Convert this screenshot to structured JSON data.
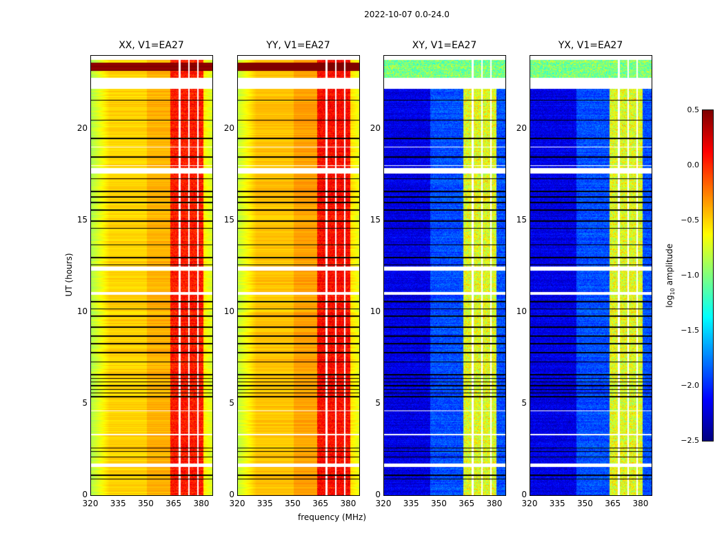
{
  "suptitle": "2022-10-07 0.0-24.0",
  "chart_data": {
    "type": "heatmap",
    "xlabel": "frequency (MHz)",
    "ylabel": "UT (hours)",
    "xlim": [
      320,
      386
    ],
    "ylim": [
      0,
      24
    ],
    "xticks": [
      "320",
      "335",
      "350",
      "365",
      "380"
    ],
    "yticks": [
      "0",
      "5",
      "10",
      "15",
      "20"
    ],
    "panels": [
      {
        "title": "XX, V1=EA27",
        "kind": "parallel",
        "base_log10_amp": -0.7,
        "band_log10_amp": 0.05
      },
      {
        "title": "YY, V1=EA27",
        "kind": "parallel",
        "base_log10_amp": -0.65,
        "band_log10_amp": 0.1
      },
      {
        "title": "XY, V1=EA27",
        "kind": "cross",
        "base_log10_amp": -2.2,
        "band_log10_amp": -0.7
      },
      {
        "title": "YX, V1=EA27",
        "kind": "cross",
        "base_log10_amp": -2.2,
        "band_log10_amp": -0.7
      }
    ],
    "rfi_band_MHz": [
      363,
      381
    ],
    "band_gaps_MHz": [
      368,
      373,
      378
    ],
    "flagged_black_hours": [
      0.9,
      1.1,
      2.1,
      2.4,
      2.6,
      5.4,
      5.6,
      5.8,
      6.0,
      6.2,
      6.4,
      6.6,
      7.3,
      7.8,
      8.3,
      8.7,
      9.2,
      9.8,
      10.2,
      10.6,
      12.6,
      13.0,
      13.7,
      14.6,
      15.0,
      15.6,
      16.0,
      16.3,
      16.6,
      17.3,
      18.5,
      19.5,
      20.5,
      21.6
    ],
    "flagged_white_hours": [
      [
        1.55,
        1.75
      ],
      [
        3.3,
        3.35
      ],
      [
        4.6,
        4.65
      ],
      [
        10.95,
        11.1
      ],
      [
        12.3,
        12.5
      ],
      [
        17.6,
        17.9
      ],
      [
        18.0,
        18.05
      ],
      [
        19.0,
        19.05
      ],
      [
        22.2,
        22.8
      ],
      [
        23.8,
        24.0
      ]
    ],
    "colorbar": {
      "label": "log10 amplitude",
      "range": [
        -2.5,
        0.5
      ],
      "ticks": [
        "0.5",
        "0.0",
        "−0.5",
        "−1.0",
        "−1.5",
        "−2.0",
        "−2.5"
      ],
      "colormap": "jet"
    }
  }
}
